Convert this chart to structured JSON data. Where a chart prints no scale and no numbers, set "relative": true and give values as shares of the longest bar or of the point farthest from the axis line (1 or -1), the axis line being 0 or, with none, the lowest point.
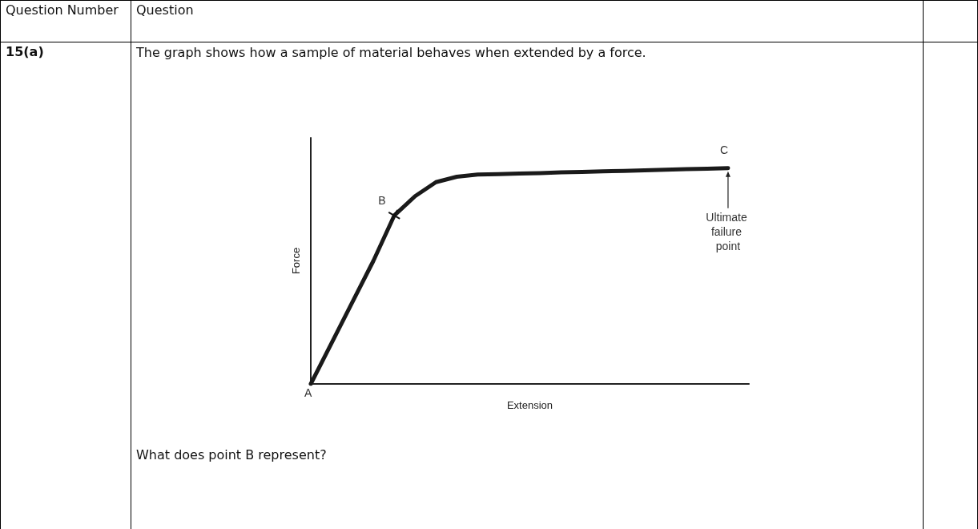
{
  "chart_data": {
    "type": "line",
    "relative": true,
    "xlabel": "Extension",
    "ylabel": "Force",
    "grid": false,
    "marker": "none",
    "categories": [
      null,
      null,
      null,
      null,
      null,
      null,
      null,
      null,
      null,
      null,
      null,
      null,
      null,
      null,
      null,
      null,
      null,
      null,
      null,
      null,
      null,
      null
    ],
    "series": [
      {
        "color": "#1a1a1a",
        "values": [
          0,
          0.19,
          0.38,
          0.57,
          0.78,
          0.87,
          0.935,
          0.96,
          0.97,
          0.972,
          0.975,
          0.977,
          0.98,
          0.982,
          0.985,
          0.987,
          0.99,
          0.992,
          0.995,
          0.997,
          1,
          null
        ]
      }
    ],
    "annotations": [
      "Question Number",
      "Question",
      "15(a)",
      "The graph shows how a sample of material behaves when extended by a force.",
      "What does point B represent?",
      "A",
      "B",
      "C",
      "Ultimate failure point"
    ]
  }
}
